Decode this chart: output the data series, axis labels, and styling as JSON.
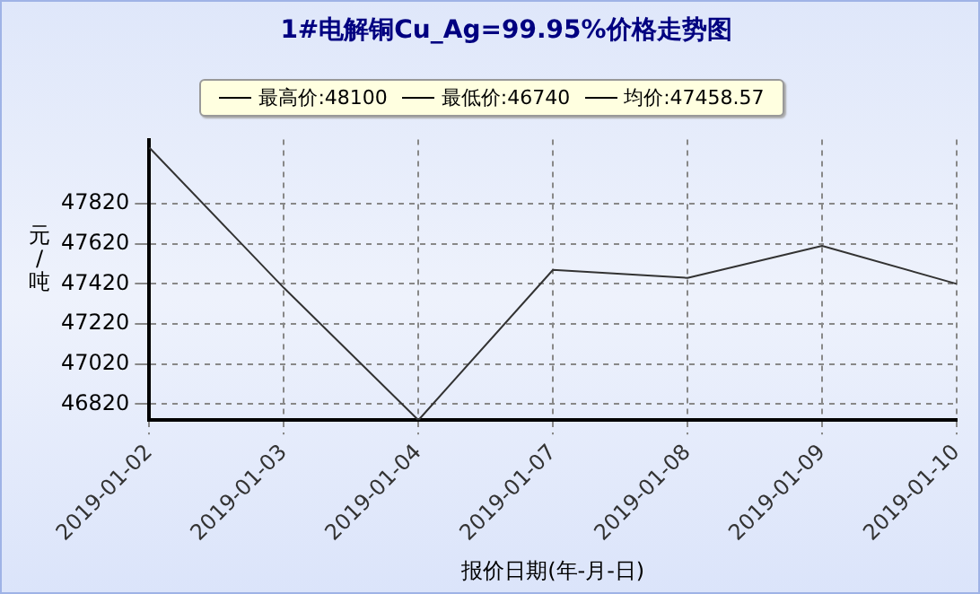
{
  "chart_data": {
    "type": "line",
    "title": "1#电解铜Cu_Ag=99.95%价格走势图",
    "xlabel": "报价日期(年-月-日)",
    "ylabel": "元/吨",
    "annotations": [
      "最高价:48100",
      "最低价:46740",
      "均价:47458.57"
    ],
    "categories": [
      "2019-01-02",
      "2019-01-03",
      "2019-01-04",
      "2019-01-07",
      "2019-01-08",
      "2019-01-09",
      "2019-01-10"
    ],
    "series": [
      {
        "color": "#333333",
        "values": [
          48100,
          47400,
          46740,
          47490,
          47450,
          47610,
          47420
        ]
      }
    ],
    "ylim": [
      46740,
      48140
    ],
    "yticks": [
      46820,
      47020,
      47220,
      47420,
      47620,
      47820
    ],
    "grid": true,
    "marker": "none",
    "line_style": "solid"
  }
}
